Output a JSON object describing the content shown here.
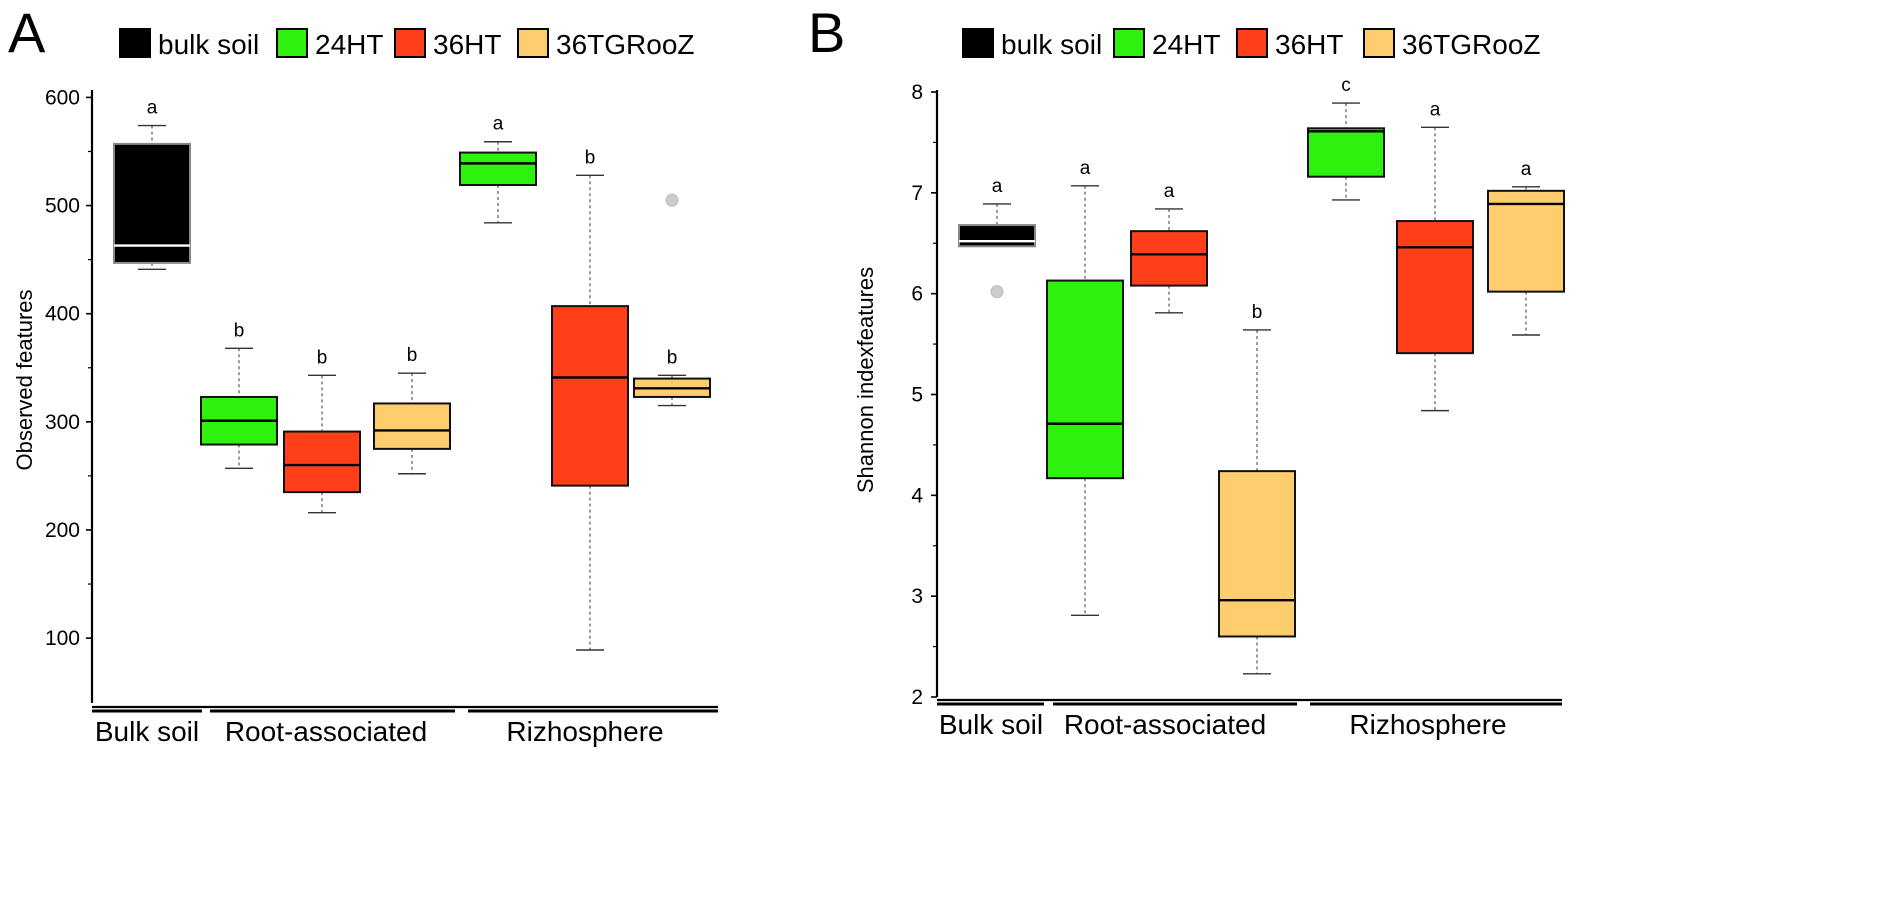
{
  "colors": {
    "bulk soil": "#000000",
    "24HT": "#2ef20d",
    "36HT": "#ff3f19",
    "36TGRooZ": "#fecd6e",
    "outlier": "#cccccc"
  },
  "chart_data": [
    {
      "panel_label": "A",
      "type": "box",
      "title": "",
      "xlabel": "",
      "ylabel": "Observed features",
      "ylim": [
        40,
        605
      ],
      "yticks": [
        100,
        200,
        300,
        400,
        500,
        600
      ],
      "legend": [
        "bulk soil",
        "24HT",
        "36HT",
        "36TGRooZ"
      ],
      "groups": [
        {
          "label": "Bulk soil",
          "series_count": 1
        },
        {
          "label": "Root-associated",
          "series_count": 3
        },
        {
          "label": "Rizhosphere",
          "series_count": 3
        }
      ],
      "boxes": [
        {
          "group": "Bulk soil",
          "series": "bulk soil",
          "min": 441,
          "q1": 447,
          "median": 463,
          "q3": 557,
          "max": 574,
          "letter": "a",
          "outliers": []
        },
        {
          "group": "Root-associated",
          "series": "24HT",
          "min": 257,
          "q1": 279,
          "median": 301,
          "q3": 323,
          "max": 368,
          "letter": "b",
          "outliers": []
        },
        {
          "group": "Root-associated",
          "series": "36HT",
          "min": 216,
          "q1": 235,
          "median": 260,
          "q3": 291,
          "max": 343,
          "letter": "b",
          "outliers": []
        },
        {
          "group": "Root-associated",
          "series": "36TGRooZ",
          "min": 252,
          "q1": 275,
          "median": 292,
          "q3": 317,
          "max": 345,
          "letter": "b",
          "outliers": []
        },
        {
          "group": "Rizhosphere",
          "series": "24HT",
          "min": 484,
          "q1": 519,
          "median": 539,
          "q3": 549,
          "max": 559,
          "letter": "a",
          "outliers": []
        },
        {
          "group": "Rizhosphere",
          "series": "36HT",
          "min": 89,
          "q1": 241,
          "median": 341,
          "q3": 407,
          "max": 528,
          "letter": "b",
          "outliers": []
        },
        {
          "group": "Rizhosphere",
          "series": "36TGRooZ",
          "min": 315,
          "q1": 323,
          "median": 331,
          "q3": 340,
          "max": 343,
          "letter": "b",
          "outliers": [
            505
          ]
        }
      ]
    },
    {
      "panel_label": "B",
      "type": "box",
      "title": "",
      "xlabel": "",
      "ylabel": "Shannon indexfeatures",
      "ylim": [
        2,
        8
      ],
      "yticks": [
        2,
        3,
        4,
        5,
        6,
        7,
        8
      ],
      "legend": [
        "bulk soil",
        "24HT",
        "36HT",
        "36TGRooZ"
      ],
      "groups": [
        {
          "label": "Bulk soil",
          "series_count": 1
        },
        {
          "label": "Root-associated",
          "series_count": 3
        },
        {
          "label": "Rizhosphere",
          "series_count": 3
        }
      ],
      "boxes": [
        {
          "group": "Bulk soil",
          "series": "bulk soil",
          "min": 6.47,
          "q1": 6.47,
          "median": 6.52,
          "q3": 6.68,
          "max": 6.89,
          "letter": "a",
          "outliers": [
            6.02
          ]
        },
        {
          "group": "Root-associated",
          "series": "24HT",
          "min": 2.81,
          "q1": 4.17,
          "median": 4.71,
          "q3": 6.13,
          "max": 7.07,
          "letter": "a",
          "outliers": []
        },
        {
          "group": "Root-associated",
          "series": "36HT",
          "min": 5.81,
          "q1": 6.08,
          "median": 6.39,
          "q3": 6.62,
          "max": 6.84,
          "letter": "a",
          "outliers": []
        },
        {
          "group": "Root-associated",
          "series": "36TGRooZ",
          "min": 2.23,
          "q1": 2.6,
          "median": 2.96,
          "q3": 4.24,
          "max": 5.64,
          "letter": "b",
          "outliers": []
        },
        {
          "group": "Rizhosphere",
          "series": "24HT",
          "min": 6.93,
          "q1": 7.16,
          "median": 7.61,
          "q3": 7.64,
          "max": 7.89,
          "letter": "c",
          "outliers": []
        },
        {
          "group": "Rizhosphere",
          "series": "36HT",
          "min": 4.84,
          "q1": 5.41,
          "median": 6.46,
          "q3": 6.72,
          "max": 7.65,
          "letter": "a",
          "outliers": []
        },
        {
          "group": "Rizhosphere",
          "series": "36TGRooZ",
          "min": 5.59,
          "q1": 6.02,
          "median": 6.89,
          "q3": 7.02,
          "max": 7.06,
          "letter": "a",
          "outliers": []
        }
      ]
    }
  ]
}
